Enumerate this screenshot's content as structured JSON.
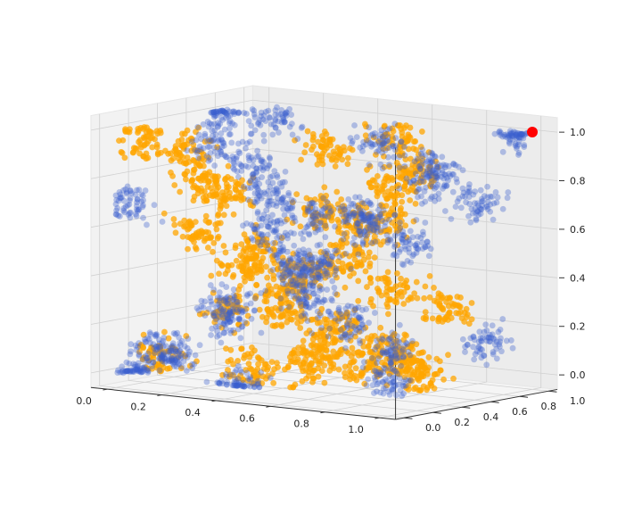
{
  "chart_data": {
    "type": "scatter3d",
    "title": "",
    "xlabel": "",
    "ylabel": "",
    "zlabel": "",
    "xlim": [
      0,
      1
    ],
    "ylim": [
      0,
      1
    ],
    "zlim": [
      0,
      1
    ],
    "xticks": [
      "0.0",
      "0.2",
      "0.4",
      "0.6",
      "0.8",
      "1.0"
    ],
    "yticks": [
      "0.0",
      "0.2",
      "0.4",
      "0.6",
      "0.8",
      "1.0"
    ],
    "zticks": [
      "0.0",
      "0.2",
      "0.4",
      "0.6",
      "0.8",
      "1.0"
    ],
    "grid": true,
    "series": [
      {
        "color": "#ffa500",
        "alpha": 0.75,
        "points": [
          [
            0.05,
            0.1,
            0.95
          ],
          [
            0.1,
            0.3,
            0.9
          ],
          [
            0.2,
            0.2,
            0.8
          ],
          [
            0.15,
            0.5,
            0.7
          ],
          [
            0.25,
            0.1,
            0.6
          ],
          [
            0.3,
            0.4,
            0.5
          ],
          [
            0.35,
            0.2,
            0.45
          ],
          [
            0.4,
            0.6,
            0.4
          ],
          [
            0.5,
            0.2,
            0.3
          ],
          [
            0.55,
            0.5,
            0.2
          ],
          [
            0.6,
            0.3,
            0.15
          ],
          [
            0.65,
            0.1,
            0.1
          ],
          [
            0.7,
            0.7,
            0.05
          ],
          [
            0.8,
            0.2,
            0.1
          ],
          [
            0.9,
            0.4,
            0.05
          ],
          [
            0.95,
            0.1,
            0.2
          ],
          [
            0.9,
            0.6,
            0.3
          ],
          [
            0.85,
            0.3,
            0.4
          ],
          [
            0.8,
            0.1,
            0.55
          ],
          [
            0.9,
            0.2,
            0.7
          ],
          [
            0.75,
            0.5,
            0.8
          ],
          [
            0.95,
            0.3,
            0.9
          ],
          [
            0.6,
            0.8,
            0.95
          ],
          [
            0.2,
            0.8,
            0.3
          ],
          [
            0.1,
            0.6,
            0.2
          ],
          [
            0.05,
            0.2,
            0.05
          ],
          [
            0.45,
            0.1,
            0.05
          ],
          [
            0.5,
            0.7,
            0.6
          ],
          [
            0.3,
            0.9,
            0.85
          ],
          [
            0.7,
            0.1,
            0.75
          ]
        ]
      },
      {
        "color": "#3a5fcd",
        "alpha": 0.35,
        "points": [
          [
            0.0,
            0.1,
            0.0
          ],
          [
            0.05,
            0.3,
            0.05
          ],
          [
            0.1,
            0.1,
            0.1
          ],
          [
            0.2,
            0.4,
            0.2
          ],
          [
            0.3,
            0.2,
            0.3
          ],
          [
            0.4,
            0.5,
            0.4
          ],
          [
            0.5,
            0.3,
            0.5
          ],
          [
            0.6,
            0.6,
            0.6
          ],
          [
            0.7,
            0.4,
            0.7
          ],
          [
            0.8,
            0.7,
            0.8
          ],
          [
            0.9,
            0.5,
            0.9
          ],
          [
            1.0,
            0.9,
            1.0
          ],
          [
            0.0,
            0.7,
            1.0
          ],
          [
            0.1,
            0.5,
            0.9
          ],
          [
            0.2,
            0.6,
            0.8
          ],
          [
            0.3,
            0.5,
            0.7
          ],
          [
            0.4,
            0.3,
            0.6
          ],
          [
            0.5,
            0.5,
            0.45
          ],
          [
            0.6,
            0.2,
            0.35
          ],
          [
            0.7,
            0.3,
            0.25
          ],
          [
            0.8,
            0.4,
            0.15
          ],
          [
            0.9,
            0.2,
            0.05
          ],
          [
            0.95,
            0.8,
            0.15
          ],
          [
            0.5,
            0.9,
            0.9
          ],
          [
            0.3,
            0.8,
            0.6
          ],
          [
            0.6,
            0.9,
            0.5
          ],
          [
            0.45,
            0.0,
            0.0
          ],
          [
            0.1,
            0.9,
            0.95
          ],
          [
            0.85,
            0.9,
            0.7
          ],
          [
            0.05,
            0.0,
            0.7
          ]
        ]
      },
      {
        "color": "#ff0000",
        "alpha": 1,
        "highlight": true,
        "points": [
          [
            1.0,
            1.0,
            1.0
          ]
        ]
      }
    ]
  }
}
